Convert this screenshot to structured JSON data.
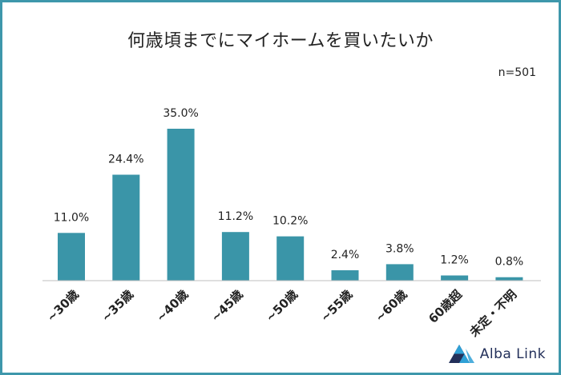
{
  "header": {
    "title": "何歳頃までにマイホームを買いたいか",
    "sample_size": "n=501"
  },
  "brand": {
    "name": "Alba Link",
    "logo_icon": "triangle-logo-icon"
  },
  "colors": {
    "bar": "#3a95a8",
    "frame": "#3e97ab",
    "axis": "#bfbfbf",
    "text": "#222222"
  },
  "chart_data": {
    "type": "bar",
    "categories": [
      "~30歳",
      "~35歳",
      "~40歳",
      "~45歳",
      "~50歳",
      "~55歳",
      "~60歳",
      "60歳超",
      "未定・不明"
    ],
    "values": [
      11.0,
      24.4,
      35.0,
      11.2,
      10.2,
      2.4,
      3.8,
      1.2,
      0.8
    ],
    "value_labels": [
      "11.0%",
      "24.4%",
      "35.0%",
      "11.2%",
      "10.2%",
      "2.4%",
      "3.8%",
      "1.2%",
      "0.8%"
    ],
    "unit": "%",
    "title": "何歳頃までにマイホームを買いたいか",
    "xlabel": "",
    "ylabel": "",
    "ylim": [
      0,
      40
    ],
    "grid": false,
    "legend": "none"
  }
}
